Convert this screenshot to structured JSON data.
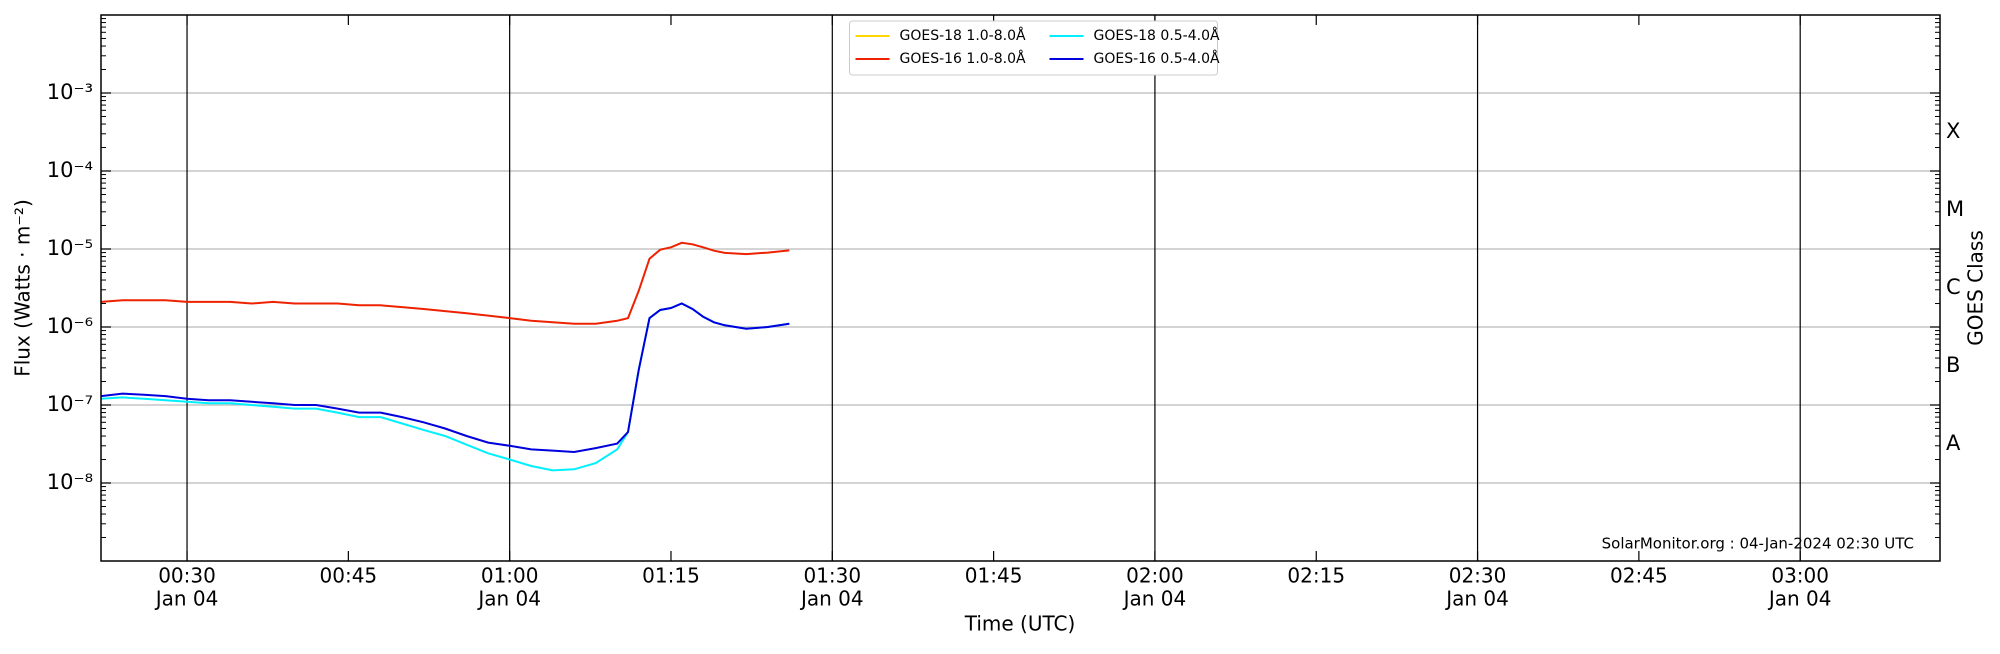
{
  "chart_data": {
    "type": "line",
    "log_y": true,
    "grid": true,
    "legend_position": "upper center",
    "xlabel": "Time (UTC)",
    "ylabel": "Flux (Watts · m⁻²)",
    "y2label": "GOES Class",
    "annotation": "SolarMonitor.org : 04-Jan-2024 02:30 UTC",
    "x": [
      "00:22",
      "00:24",
      "00:26",
      "00:28",
      "00:30",
      "00:32",
      "00:34",
      "00:36",
      "00:38",
      "00:40",
      "00:42",
      "00:44",
      "00:46",
      "00:48",
      "00:50",
      "00:52",
      "00:54",
      "00:56",
      "00:58",
      "01:00",
      "01:02",
      "01:04",
      "01:06",
      "01:08",
      "01:10",
      "01:11",
      "01:12",
      "01:13",
      "01:14",
      "01:15",
      "01:16",
      "01:17",
      "01:18",
      "01:19",
      "01:20",
      "01:22",
      "01:24",
      "01:26"
    ],
    "xlim": [
      "00:22",
      "03:13"
    ],
    "xticks": [
      {
        "value": "00:30",
        "label": "00:30",
        "date": "Jan 04"
      },
      {
        "value": "00:45",
        "label": "00:45"
      },
      {
        "value": "01:00",
        "label": "01:00",
        "date": "Jan 04"
      },
      {
        "value": "01:15",
        "label": "01:15"
      },
      {
        "value": "01:30",
        "label": "01:30",
        "date": "Jan 04"
      },
      {
        "value": "01:45",
        "label": "01:45"
      },
      {
        "value": "02:00",
        "label": "02:00",
        "date": "Jan 04"
      },
      {
        "value": "02:15",
        "label": "02:15"
      },
      {
        "value": "02:30",
        "label": "02:30",
        "date": "Jan 04"
      },
      {
        "value": "02:45",
        "label": "02:45"
      },
      {
        "value": "03:00",
        "label": "03:00",
        "date": "Jan 04"
      }
    ],
    "ylim": [
      1e-09,
      0.01
    ],
    "yticks": [
      {
        "value": 1e-08,
        "label": "10⁻⁸"
      },
      {
        "value": 1e-07,
        "label": "10⁻⁷"
      },
      {
        "value": 1e-06,
        "label": "10⁻⁶"
      },
      {
        "value": 1e-05,
        "label": "10⁻⁵"
      },
      {
        "value": 0.0001,
        "label": "10⁻⁴"
      },
      {
        "value": 0.001,
        "label": "10⁻³"
      }
    ],
    "y2lim": [
      1e-09,
      0.01
    ],
    "y2ticks": [
      {
        "value": 3.162e-08,
        "label": "A"
      },
      {
        "value": 3.162e-07,
        "label": "B"
      },
      {
        "value": 3.162e-06,
        "label": "C"
      },
      {
        "value": 3.162e-05,
        "label": "M"
      },
      {
        "value": 0.0003162,
        "label": "X"
      }
    ],
    "series": [
      {
        "name": "GOES-18 1.0-8.0Å",
        "color": "#ffd700",
        "values": [
          null,
          null,
          null,
          null,
          null,
          null,
          null,
          null,
          null,
          null,
          null,
          null,
          null,
          null,
          null,
          null,
          null,
          null,
          null,
          null,
          null,
          null,
          null,
          null,
          null,
          null,
          null,
          null,
          null,
          null,
          null,
          null,
          null,
          null,
          null,
          null,
          null,
          null
        ]
      },
      {
        "name": "GOES-16 1.0-8.0Å",
        "color": "#ee2200",
        "values": [
          2.1e-06,
          2.2e-06,
          2.2e-06,
          2.2e-06,
          2.1e-06,
          2.1e-06,
          2.1e-06,
          2e-06,
          2.1e-06,
          2e-06,
          2e-06,
          2e-06,
          1.9e-06,
          1.9e-06,
          1.8e-06,
          1.7e-06,
          1.6e-06,
          1.5e-06,
          1.4e-06,
          1.3e-06,
          1.2e-06,
          1.15e-06,
          1.1e-06,
          1.1e-06,
          1.2e-06,
          1.3e-06,
          2.9e-06,
          7.5e-06,
          9.8e-06,
          1.05e-05,
          1.2e-05,
          1.15e-05,
          1.05e-05,
          9.5e-06,
          8.9e-06,
          8.6e-06,
          9e-06,
          9.6e-06
        ]
      },
      {
        "name": "GOES-18 0.5-4.0Å",
        "color": "#00f0ff",
        "values": [
          1.2e-07,
          1.25e-07,
          1.2e-07,
          1.15e-07,
          1.1e-07,
          1.05e-07,
          1.05e-07,
          1e-07,
          9.5e-08,
          9e-08,
          9e-08,
          8e-08,
          7e-08,
          7e-08,
          5.8e-08,
          4.8e-08,
          4e-08,
          3.1e-08,
          2.4e-08,
          2e-08,
          1.65e-08,
          1.45e-08,
          1.5e-08,
          1.8e-08,
          2.7e-08,
          4.5e-08,
          2.8e-07,
          1.3e-06,
          1.65e-06,
          1.75e-06,
          2e-06,
          1.7e-06,
          1.35e-06,
          1.15e-06,
          1.05e-06,
          9.5e-07,
          1e-06,
          1.1e-06
        ]
      },
      {
        "name": "GOES-16 0.5-4.0Å",
        "color": "#0000dd",
        "values": [
          1.3e-07,
          1.4e-07,
          1.35e-07,
          1.3e-07,
          1.2e-07,
          1.15e-07,
          1.15e-07,
          1.1e-07,
          1.05e-07,
          1e-07,
          1e-07,
          9e-08,
          8e-08,
          8e-08,
          7e-08,
          6e-08,
          5e-08,
          4e-08,
          3.3e-08,
          3e-08,
          2.7e-08,
          2.6e-08,
          2.5e-08,
          2.8e-08,
          3.2e-08,
          4.5e-08,
          2.8e-07,
          1.3e-06,
          1.65e-06,
          1.75e-06,
          2e-06,
          1.7e-06,
          1.35e-06,
          1.15e-06,
          1.05e-06,
          9.5e-07,
          1e-06,
          1.1e-06
        ]
      }
    ]
  }
}
